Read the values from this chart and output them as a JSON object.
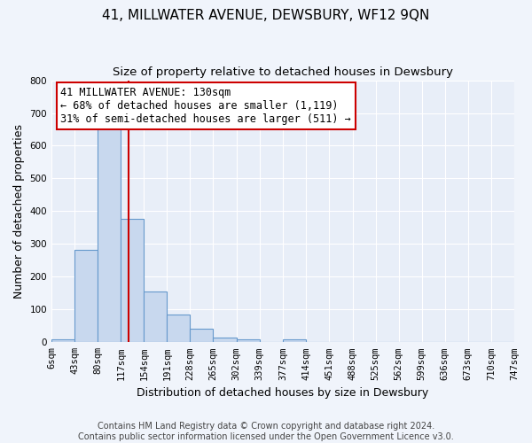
{
  "title": "41, MILLWATER AVENUE, DEWSBURY, WF12 9QN",
  "subtitle": "Size of property relative to detached houses in Dewsbury",
  "xlabel": "Distribution of detached houses by size in Dewsbury",
  "ylabel": "Number of detached properties",
  "bin_edges": [
    6,
    43,
    80,
    117,
    154,
    191,
    228,
    265,
    302,
    339,
    377,
    414,
    451,
    488,
    525,
    562,
    599,
    636,
    673,
    710,
    747
  ],
  "bar_heights": [
    8,
    283,
    667,
    378,
    155,
    85,
    42,
    14,
    10,
    0,
    9,
    0,
    0,
    0,
    0,
    0,
    0,
    0,
    0,
    0
  ],
  "bar_color": "#c8d8ee",
  "bar_edge_color": "#6699cc",
  "property_line_x": 130,
  "property_line_color": "#cc0000",
  "annotation_line1": "41 MILLWATER AVENUE: 130sqm",
  "annotation_line2": "← 68% of detached houses are smaller (1,119)",
  "annotation_line3": "31% of semi-detached houses are larger (511) →",
  "annotation_box_color": "#ffffff",
  "annotation_box_edge_color": "#cc0000",
  "ylim": [
    0,
    800
  ],
  "yticks": [
    0,
    100,
    200,
    300,
    400,
    500,
    600,
    700,
    800
  ],
  "tick_labels": [
    "6sqm",
    "43sqm",
    "80sqm",
    "117sqm",
    "154sqm",
    "191sqm",
    "228sqm",
    "265sqm",
    "302sqm",
    "339sqm",
    "377sqm",
    "414sqm",
    "451sqm",
    "488sqm",
    "525sqm",
    "562sqm",
    "599sqm",
    "636sqm",
    "673sqm",
    "710sqm",
    "747sqm"
  ],
  "footer_line1": "Contains HM Land Registry data © Crown copyright and database right 2024.",
  "footer_line2": "Contains public sector information licensed under the Open Government Licence v3.0.",
  "background_color": "#f0f4fb",
  "plot_bg_color": "#e8eef8",
  "grid_color": "#ffffff",
  "title_fontsize": 11,
  "subtitle_fontsize": 9.5,
  "axis_label_fontsize": 9,
  "tick_fontsize": 7.5,
  "footer_fontsize": 7,
  "annotation_fontsize": 8.5
}
